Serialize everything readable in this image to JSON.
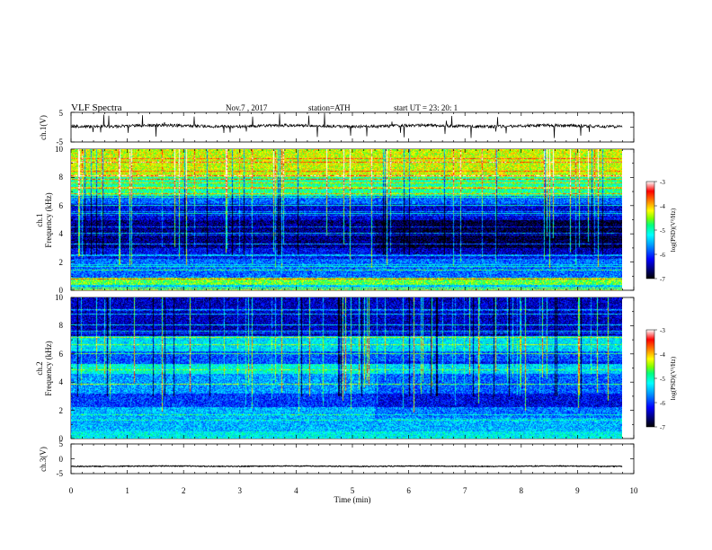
{
  "header": {
    "title": "VLF Spectra",
    "date": "Nov.7 , 2017",
    "station": "station=ATH",
    "start": "start UT = 23: 20: 1"
  },
  "colors": {
    "waveform": "#000000",
    "colormap": [
      "#000000",
      "#000080",
      "#0000ff",
      "#00a0ff",
      "#00ffff",
      "#00ff80",
      "#80ff00",
      "#ffff00",
      "#ff8000",
      "#ff0000",
      "#ffffff"
    ]
  },
  "chart_data": [
    {
      "type": "line",
      "name": "ch1-waveform",
      "ylabel": "ch.1(V)",
      "xlim": [
        0,
        10
      ],
      "ylim": [
        -5,
        5
      ],
      "yticks": [
        "5",
        "-5"
      ],
      "data_end_min": 9.8,
      "level_v": 0.4,
      "noise_v": 0.5
    },
    {
      "type": "heatmap",
      "name": "ch1-spectrogram",
      "title": "ch.1",
      "ylabel": "Frequency (kHz)",
      "xlim": [
        0,
        10
      ],
      "ylim": [
        0,
        10
      ],
      "yticks": [
        "0",
        "2",
        "4",
        "6",
        "8",
        "10"
      ],
      "colorbar": {
        "label": "log(PSD)(V²/Hz)",
        "range": [
          -7,
          -3
        ],
        "ticks": [
          "-3",
          "-4",
          "-5",
          "-6",
          "-7"
        ]
      },
      "bands_khz_level": [
        [
          0,
          0.4,
          -5.4
        ],
        [
          0.4,
          0.9,
          -4.6
        ],
        [
          0.9,
          2.2,
          -5.8
        ],
        [
          2.2,
          3,
          -6.2
        ],
        [
          3,
          5,
          -6.6
        ],
        [
          5,
          6.1,
          -6.3
        ],
        [
          6.1,
          6.7,
          -5.8
        ],
        [
          6.7,
          8,
          -4.9
        ],
        [
          8,
          10,
          -4.3
        ]
      ]
    },
    {
      "type": "heatmap",
      "name": "ch2-spectrogram",
      "title": "ch.2",
      "ylabel": "Frequency (kHz)",
      "xlim": [
        0,
        10
      ],
      "ylim": [
        0,
        10
      ],
      "yticks": [
        "0",
        "2",
        "4",
        "6",
        "8",
        "10"
      ],
      "colorbar": {
        "label": "log(PSD)(V²/Hz)",
        "range": [
          -7,
          -3
        ],
        "ticks": [
          "-3",
          "-4",
          "-5",
          "-6",
          "-7"
        ]
      },
      "bands_khz_level": [
        [
          0,
          0.5,
          -5.2
        ],
        [
          0.5,
          2.2,
          -5.5
        ],
        [
          2.2,
          3.2,
          -6.0
        ],
        [
          3.2,
          4.6,
          -5.6
        ],
        [
          4.6,
          5.3,
          -5.1
        ],
        [
          5.3,
          6.2,
          -5.9
        ],
        [
          6.2,
          7.2,
          -5.3
        ],
        [
          7.2,
          10,
          -6.4
        ]
      ]
    },
    {
      "type": "line",
      "name": "ch3-waveform",
      "ylabel": "ch.3(V)",
      "xlim": [
        0,
        10
      ],
      "ylim": [
        -5,
        5
      ],
      "yticks": [
        "5",
        "0",
        "-5"
      ],
      "data_end_min": 9.8,
      "level_v": -2.5,
      "noise_v": 0.15
    }
  ],
  "xaxis": {
    "label": "Time (min)",
    "ticks": [
      "0",
      "1",
      "2",
      "3",
      "4",
      "5",
      "6",
      "7",
      "8",
      "9",
      "10"
    ]
  }
}
